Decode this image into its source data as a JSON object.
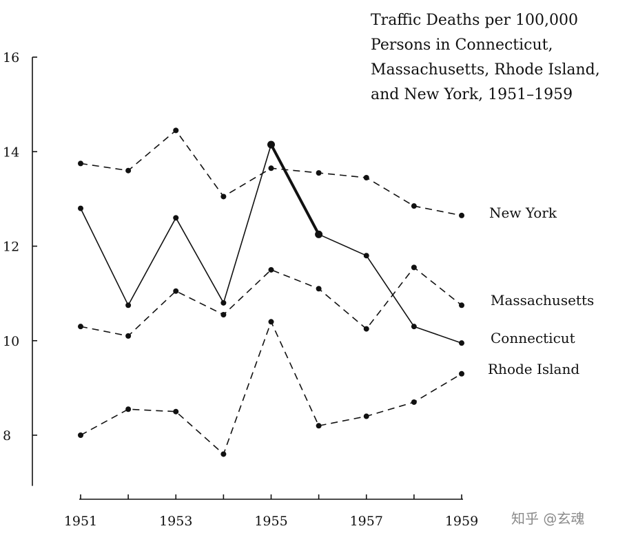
{
  "chart_data": {
    "type": "line",
    "title_lines": [
      "Traffic Deaths per 100,000",
      "Persons in Connecticut,",
      "Massachusetts, Rhode Island,",
      "and New York, 1951–1959"
    ],
    "x": [
      1951,
      1952,
      1953,
      1954,
      1955,
      1956,
      1957,
      1958,
      1959
    ],
    "x_tick_labels": [
      "1951",
      "1953",
      "1955",
      "1957",
      "1959"
    ],
    "x_tick_values": [
      1951,
      1953,
      1955,
      1957,
      1959
    ],
    "y_tick_labels": [
      "8",
      "10",
      "12",
      "14",
      "16"
    ],
    "y_tick_values": [
      8,
      10,
      12,
      14,
      16
    ],
    "xlim": [
      1951,
      1959
    ],
    "ylim": [
      7,
      16
    ],
    "grid": false,
    "legend": "direct labels at right end of lines",
    "series": [
      {
        "name": "New York",
        "style": "dashed",
        "values": [
          13.75,
          13.6,
          14.45,
          13.05,
          13.65,
          13.55,
          13.45,
          12.85,
          12.65
        ]
      },
      {
        "name": "Massachusetts",
        "style": "dashed",
        "values": [
          10.3,
          10.1,
          11.05,
          10.55,
          11.5,
          11.1,
          10.25,
          11.55,
          10.75
        ]
      },
      {
        "name": "Connecticut",
        "style": "solid",
        "values": [
          12.8,
          10.75,
          12.6,
          10.8,
          14.15,
          12.25,
          11.8,
          10.3,
          9.95
        ],
        "emphasis_segment": [
          1955,
          1956
        ]
      },
      {
        "name": "Rhode Island",
        "style": "dashed",
        "values": [
          8.0,
          8.55,
          8.5,
          7.6,
          10.4,
          8.2,
          8.4,
          8.7,
          9.3
        ]
      }
    ]
  },
  "watermark": "知乎 @玄魂",
  "colors": {
    "ink": "#111111",
    "background": "#ffffff",
    "watermark": "#8a8a8a"
  }
}
